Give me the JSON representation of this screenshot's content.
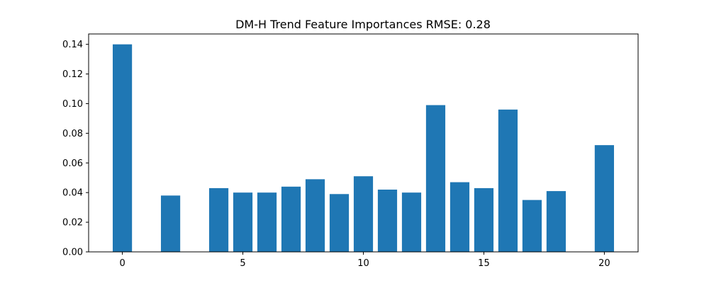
{
  "chart_data": {
    "type": "bar",
    "title": "DM-H Trend Feature Importances RMSE: 0.28",
    "xlabel": "",
    "ylabel": "",
    "x": [
      0,
      1,
      2,
      3,
      4,
      5,
      6,
      7,
      8,
      9,
      10,
      11,
      12,
      13,
      14,
      15,
      16,
      17,
      18,
      19,
      20
    ],
    "values": [
      0.14,
      0.0,
      0.038,
      0.0,
      0.043,
      0.04,
      0.04,
      0.044,
      0.049,
      0.039,
      0.051,
      0.042,
      0.04,
      0.099,
      0.047,
      0.043,
      0.096,
      0.035,
      0.041,
      0.0,
      0.072
    ],
    "xlim": [
      -1.4,
      21.4
    ],
    "ylim": [
      0,
      0.147
    ],
    "xticks": [
      0,
      5,
      10,
      15,
      20
    ],
    "yticks": [
      0.0,
      0.02,
      0.04,
      0.06,
      0.08,
      0.1,
      0.12,
      0.14
    ],
    "ytick_labels": [
      "0.00",
      "0.02",
      "0.04",
      "0.06",
      "0.08",
      "0.10",
      "0.12",
      "0.14"
    ],
    "xtick_labels": [
      "0",
      "5",
      "10",
      "15",
      "20"
    ],
    "bar_color": "#1f77b4",
    "grid": false,
    "legend": "none"
  }
}
